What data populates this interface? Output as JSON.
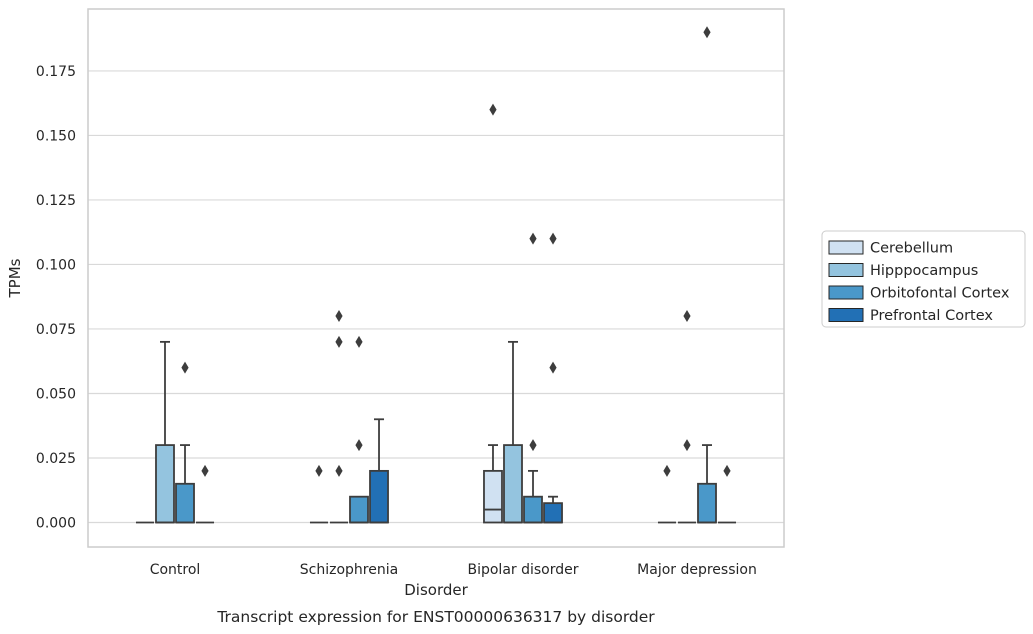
{
  "chart_data": {
    "type": "box",
    "title": "",
    "caption": "Transcript expression for ENST00000636317 by disorder",
    "xlabel": "Disorder",
    "ylabel": "TPMs",
    "ylim": [
      -0.0095,
      0.199
    ],
    "yticks": [
      "0.000",
      "0.025",
      "0.050",
      "0.075",
      "0.100",
      "0.125",
      "0.150",
      "0.175"
    ],
    "categories": [
      "Control",
      "Schizophrenia",
      "Bipolar disorder",
      "Major depression"
    ],
    "grid": "horizontal",
    "legend_position": "right",
    "series": [
      {
        "name": "Cerebellum",
        "color": "#d0e1f2",
        "boxes": [
          {
            "q1": 0,
            "median": 0,
            "q3": 0,
            "whislo": 0,
            "whishi": 0,
            "fliers": []
          },
          {
            "q1": 0,
            "median": 0,
            "q3": 0,
            "whislo": 0,
            "whishi": 0,
            "fliers": [
              0.02
            ]
          },
          {
            "q1": 0,
            "median": 0.005,
            "q3": 0.02,
            "whislo": 0,
            "whishi": 0.03,
            "fliers": [
              0.16
            ]
          },
          {
            "q1": 0,
            "median": 0,
            "q3": 0,
            "whislo": 0,
            "whishi": 0,
            "fliers": [
              0.02
            ]
          }
        ]
      },
      {
        "name": "Hipppocampus",
        "color": "#94c4df",
        "boxes": [
          {
            "q1": 0,
            "median": 0,
            "q3": 0.03,
            "whislo": 0,
            "whishi": 0.07,
            "fliers": []
          },
          {
            "q1": 0,
            "median": 0,
            "q3": 0,
            "whislo": 0,
            "whishi": 0,
            "fliers": [
              0.02,
              0.07,
              0.08
            ]
          },
          {
            "q1": 0,
            "median": 0,
            "q3": 0.03,
            "whislo": 0,
            "whishi": 0.07,
            "fliers": []
          },
          {
            "q1": 0,
            "median": 0,
            "q3": 0,
            "whislo": 0,
            "whishi": 0,
            "fliers": [
              0.03,
              0.08
            ]
          }
        ]
      },
      {
        "name": "Orbitofontal Cortex",
        "color": "#4a98c9",
        "boxes": [
          {
            "q1": 0,
            "median": 0,
            "q3": 0.015,
            "whislo": 0,
            "whishi": 0.03,
            "fliers": [
              0.06
            ]
          },
          {
            "q1": 0,
            "median": 0,
            "q3": 0.01,
            "whislo": 0,
            "whishi": 0.01,
            "fliers": [
              0.03,
              0.07
            ]
          },
          {
            "q1": 0,
            "median": 0,
            "q3": 0.01,
            "whislo": 0,
            "whishi": 0.02,
            "fliers": [
              0.03,
              0.11
            ]
          },
          {
            "q1": 0,
            "median": 0,
            "q3": 0.015,
            "whislo": 0,
            "whishi": 0.03,
            "fliers": [
              0.19
            ]
          }
        ]
      },
      {
        "name": "Prefrontal Cortex",
        "color": "#2270b5",
        "boxes": [
          {
            "q1": 0,
            "median": 0,
            "q3": 0,
            "whislo": 0,
            "whishi": 0,
            "fliers": [
              0.02
            ]
          },
          {
            "q1": 0,
            "median": 0,
            "q3": 0.02,
            "whislo": 0,
            "whishi": 0.04,
            "fliers": []
          },
          {
            "q1": 0,
            "median": 0,
            "q3": 0.0075,
            "whislo": 0,
            "whishi": 0.01,
            "fliers": [
              0.06,
              0.11
            ]
          },
          {
            "q1": 0,
            "median": 0,
            "q3": 0,
            "whislo": 0,
            "whishi": 0,
            "fliers": [
              0.02
            ]
          }
        ]
      }
    ]
  }
}
